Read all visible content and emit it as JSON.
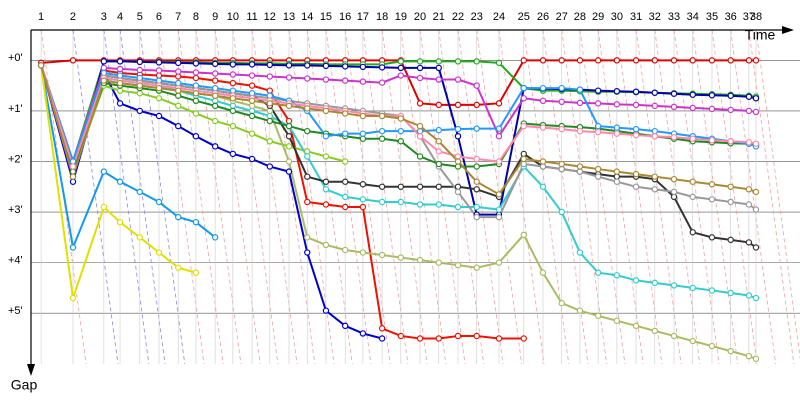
{
  "chart_data": {
    "type": "line",
    "x_label": "Time",
    "y_label": "Gap",
    "x": [
      0.2,
      0.83,
      1.44,
      1.76,
      2.15,
      2.53,
      2.91,
      3.26,
      3.64,
      3.99,
      4.37,
      4.72,
      5.1,
      5.46,
      5.83,
      6.21,
      6.56,
      6.94,
      7.31,
      7.69,
      8.06,
      8.44,
      8.81,
      9.25,
      9.74,
      10.12,
      10.49,
      10.85,
      11.21,
      11.58,
      11.96,
      12.33,
      12.71,
      13.08,
      13.46,
      13.83,
      14.19,
      14.33
    ],
    "xticks": [
      {
        "value": 0.2,
        "label": "1"
      },
      {
        "value": 0.83,
        "label": "2"
      },
      {
        "value": 1.44,
        "label": "3"
      },
      {
        "value": 1.76,
        "label": "4"
      },
      {
        "value": 2.15,
        "label": "5"
      },
      {
        "value": 2.53,
        "label": "6"
      },
      {
        "value": 2.91,
        "label": "7"
      },
      {
        "value": 3.26,
        "label": "8"
      },
      {
        "value": 3.64,
        "label": "9"
      },
      {
        "value": 3.99,
        "label": "10"
      },
      {
        "value": 4.37,
        "label": "11"
      },
      {
        "value": 4.72,
        "label": "12"
      },
      {
        "value": 5.1,
        "label": "13"
      },
      {
        "value": 5.46,
        "label": "14"
      },
      {
        "value": 5.83,
        "label": "15"
      },
      {
        "value": 6.21,
        "label": "16"
      },
      {
        "value": 6.56,
        "label": "17"
      },
      {
        "value": 6.94,
        "label": "18"
      },
      {
        "value": 7.31,
        "label": "19"
      },
      {
        "value": 7.69,
        "label": "20"
      },
      {
        "value": 8.06,
        "label": "21"
      },
      {
        "value": 8.44,
        "label": "22"
      },
      {
        "value": 8.81,
        "label": "23"
      },
      {
        "value": 9.25,
        "label": "24"
      },
      {
        "value": 9.74,
        "label": "25"
      },
      {
        "value": 10.12,
        "label": "26"
      },
      {
        "value": 10.49,
        "label": "27"
      },
      {
        "value": 10.85,
        "label": "28"
      },
      {
        "value": 11.21,
        "label": "29"
      },
      {
        "value": 11.58,
        "label": "30"
      },
      {
        "value": 11.96,
        "label": "31"
      },
      {
        "value": 12.33,
        "label": "32"
      },
      {
        "value": 12.71,
        "label": "33"
      },
      {
        "value": 13.08,
        "label": "34"
      },
      {
        "value": 13.46,
        "label": "35"
      },
      {
        "value": 13.83,
        "label": "36"
      },
      {
        "value": 14.19,
        "label": "37"
      },
      {
        "value": 14.33,
        "label": "38"
      }
    ],
    "xlim": [
      0,
      15.2
    ],
    "ylim": [
      -0.6,
      6.4
    ],
    "y_inverted": true,
    "yticks": [
      {
        "value": 0,
        "label": "+0'"
      },
      {
        "value": 1,
        "label": "+1'"
      },
      {
        "value": 2,
        "label": "+2'"
      },
      {
        "value": 3,
        "label": "+3'"
      },
      {
        "value": 4,
        "label": "+4'"
      },
      {
        "value": 5,
        "label": "+5'"
      }
    ],
    "grid": true,
    "series": [
      {
        "color": "#dd0000",
        "values": [
          0.05,
          0,
          0,
          0,
          0,
          0,
          0,
          0,
          0,
          0,
          0,
          0,
          0,
          0,
          0,
          0,
          0,
          0,
          0,
          0.85,
          0.88,
          0.88,
          0.88,
          0.85,
          0,
          0,
          0,
          0,
          0,
          0,
          0,
          0,
          0,
          0,
          0,
          0,
          0,
          0
        ]
      },
      {
        "color": "#22aa22",
        "values": [
          0.1,
          2.0,
          0.02,
          0.02,
          0.03,
          0.03,
          0.04,
          0.04,
          0.05,
          0.05,
          0.06,
          0.06,
          0.07,
          0.07,
          0.08,
          0.08,
          0.08,
          0.08,
          0.02,
          0.02,
          0.02,
          0.02,
          0.02,
          0.05,
          0.55,
          0.6,
          0.6,
          0.61,
          0.62,
          0.62,
          0.63,
          0.64,
          0.65,
          0.66,
          0.67,
          0.68,
          0.7,
          0.72
        ]
      },
      {
        "color": "#0000aa",
        "values": [
          0.1,
          2.3,
          0.02,
          0.02,
          0.03,
          0.04,
          0.05,
          0.06,
          0.07,
          0.08,
          0.08,
          0.09,
          0.1,
          0.1,
          0.11,
          0.12,
          0.13,
          0.14,
          0.15,
          0.15,
          0.15,
          1.5,
          3.05,
          3.05,
          0.55,
          0.56,
          0.57,
          0.58,
          0.6,
          0.61,
          0.62,
          0.64,
          0.66,
          0.68,
          0.69,
          0.7,
          0.72,
          0.75
        ]
      },
      {
        "color": "#0000cc",
        "values": [
          0.1,
          2.4,
          0.25,
          0.85,
          1.0,
          1.1,
          1.3,
          1.5,
          1.7,
          1.85,
          1.95,
          2.1,
          2.2,
          3.8,
          4.95,
          5.25,
          5.4,
          5.5,
          null,
          null,
          null,
          null,
          null,
          null,
          null,
          null,
          null,
          null,
          null,
          null,
          null,
          null,
          null,
          null,
          null,
          null,
          null,
          null
        ]
      },
      {
        "color": "#ee1100",
        "values": [
          0.1,
          2.1,
          0.2,
          0.25,
          0.28,
          0.3,
          0.32,
          0.35,
          0.4,
          0.45,
          0.5,
          0.6,
          1.2,
          2.8,
          2.85,
          2.9,
          2.9,
          5.3,
          5.45,
          5.5,
          5.5,
          5.45,
          5.45,
          5.5,
          5.5,
          null,
          null,
          null,
          null,
          null,
          null,
          null,
          null,
          null,
          null,
          null,
          null,
          null
        ]
      },
      {
        "color": "#1199ee",
        "values": [
          0.1,
          3.7,
          2.2,
          2.4,
          2.6,
          2.8,
          3.1,
          3.2,
          3.5,
          null,
          null,
          null,
          null,
          null,
          null,
          null,
          null,
          null,
          null,
          null,
          null,
          null,
          null,
          null,
          null,
          null,
          null,
          null,
          null,
          null,
          null,
          null,
          null,
          null,
          null,
          null,
          null,
          null
        ]
      },
      {
        "color": "#e0e000",
        "values": [
          0.1,
          4.7,
          2.9,
          3.2,
          3.5,
          3.8,
          4.1,
          4.2,
          null,
          null,
          null,
          null,
          null,
          null,
          null,
          null,
          null,
          null,
          null,
          null,
          null,
          null,
          null,
          null,
          null,
          null,
          null,
          null,
          null,
          null,
          null,
          null,
          null,
          null,
          null,
          null,
          null,
          null
        ]
      },
      {
        "color": "#88cc22",
        "values": [
          0.1,
          2.2,
          0.5,
          0.6,
          0.65,
          0.75,
          0.9,
          1.05,
          1.2,
          1.3,
          1.45,
          1.6,
          1.7,
          1.8,
          1.9,
          2.0,
          null,
          null,
          null,
          null,
          null,
          null,
          null,
          null,
          null,
          null,
          null,
          null,
          null,
          null,
          null,
          null,
          null,
          null,
          null,
          null,
          null,
          null
        ]
      },
      {
        "color": "#33cccc",
        "values": [
          0.1,
          2.1,
          0.35,
          0.4,
          0.45,
          0.5,
          0.6,
          0.7,
          0.8,
          0.9,
          1.0,
          1.1,
          1.3,
          1.9,
          2.55,
          2.7,
          2.75,
          2.8,
          2.8,
          2.85,
          2.85,
          2.9,
          2.9,
          2.95,
          2.1,
          2.5,
          3.0,
          3.8,
          4.2,
          4.25,
          4.35,
          4.4,
          4.45,
          4.5,
          4.55,
          4.6,
          4.65,
          4.7
        ]
      },
      {
        "color": "#aabb66",
        "values": [
          0.1,
          2.2,
          0.4,
          0.45,
          0.5,
          0.55,
          0.6,
          0.65,
          0.7,
          0.8,
          0.9,
          1.0,
          2.0,
          3.5,
          3.65,
          3.75,
          3.8,
          3.85,
          3.9,
          3.95,
          4.0,
          4.05,
          4.1,
          4.0,
          3.45,
          4.2,
          4.8,
          4.95,
          5.05,
          5.15,
          5.25,
          5.35,
          5.45,
          5.55,
          5.65,
          5.75,
          5.85,
          5.9
        ]
      },
      {
        "color": "#333333",
        "values": [
          0.1,
          2.2,
          0.3,
          0.35,
          0.4,
          0.45,
          0.5,
          0.55,
          0.6,
          0.65,
          0.7,
          0.9,
          1.5,
          2.3,
          2.4,
          2.4,
          2.45,
          2.5,
          2.5,
          2.5,
          2.5,
          2.5,
          2.55,
          2.7,
          1.85,
          2.1,
          2.15,
          2.2,
          2.25,
          2.3,
          2.3,
          2.35,
          2.7,
          3.4,
          3.5,
          3.55,
          3.6,
          3.7
        ]
      },
      {
        "color": "#cc33cc",
        "values": [
          0.1,
          2.0,
          0.15,
          0.17,
          0.19,
          0.2,
          0.22,
          0.24,
          0.26,
          0.28,
          0.3,
          0.32,
          0.34,
          0.36,
          0.38,
          0.4,
          0.42,
          0.44,
          0.3,
          0.35,
          0.38,
          0.38,
          0.5,
          1.5,
          0.75,
          0.8,
          0.82,
          0.84,
          0.85,
          0.87,
          0.88,
          0.9,
          0.92,
          0.94,
          0.96,
          0.98,
          1.0,
          1.02
        ]
      },
      {
        "color": "#999999",
        "values": [
          0.1,
          2.1,
          0.3,
          0.35,
          0.4,
          0.45,
          0.5,
          0.55,
          0.6,
          0.65,
          0.7,
          0.75,
          0.8,
          0.85,
          0.9,
          0.95,
          1.0,
          1.05,
          1.1,
          1.5,
          2.1,
          2.6,
          3.1,
          3.1,
          2.05,
          2.1,
          2.15,
          2.2,
          2.3,
          2.4,
          2.5,
          2.55,
          2.6,
          2.7,
          2.75,
          2.8,
          2.85,
          2.95
        ]
      },
      {
        "color": "#228822",
        "values": [
          0.1,
          2.2,
          0.45,
          0.5,
          0.55,
          0.6,
          0.7,
          0.8,
          0.9,
          1.0,
          1.1,
          1.2,
          1.3,
          1.4,
          1.45,
          1.5,
          1.55,
          1.55,
          1.6,
          1.9,
          2.05,
          2.1,
          2.1,
          2.05,
          1.25,
          1.28,
          1.3,
          1.32,
          1.35,
          1.4,
          1.45,
          1.5,
          1.55,
          1.6,
          1.62,
          1.64,
          1.65,
          1.67
        ]
      },
      {
        "color": "#2299ff",
        "values": [
          0.1,
          2.0,
          0.25,
          0.3,
          0.35,
          0.4,
          0.45,
          0.5,
          0.55,
          0.6,
          0.65,
          0.7,
          0.8,
          1.0,
          1.5,
          1.45,
          1.45,
          1.4,
          1.4,
          1.4,
          1.38,
          1.36,
          1.35,
          1.35,
          0.55,
          0.55,
          0.55,
          0.58,
          1.3,
          1.33,
          1.36,
          1.4,
          1.45,
          1.5,
          1.55,
          1.6,
          1.65,
          1.7
        ]
      },
      {
        "color": "#ff88aa",
        "values": [
          0.1,
          2.1,
          0.35,
          0.4,
          0.45,
          0.5,
          0.55,
          0.6,
          0.65,
          0.7,
          0.75,
          0.8,
          0.85,
          0.9,
          0.95,
          1.0,
          1.05,
          1.1,
          1.1,
          1.5,
          1.8,
          1.9,
          1.95,
          2.0,
          1.3,
          1.33,
          1.36,
          1.4,
          1.42,
          1.45,
          1.48,
          1.5,
          1.52,
          1.55,
          1.58,
          1.6,
          1.62,
          1.65
        ]
      },
      {
        "color": "#aa8833",
        "values": [
          0.1,
          2.3,
          0.4,
          0.45,
          0.5,
          0.55,
          0.6,
          0.65,
          0.7,
          0.75,
          0.8,
          0.85,
          0.9,
          0.95,
          1.0,
          1.05,
          1.1,
          1.1,
          1.15,
          1.3,
          1.6,
          2.0,
          2.4,
          2.65,
          1.95,
          2.0,
          2.05,
          2.1,
          2.15,
          2.2,
          2.25,
          2.3,
          2.35,
          2.4,
          2.45,
          2.5,
          2.55,
          2.6
        ]
      }
    ]
  }
}
